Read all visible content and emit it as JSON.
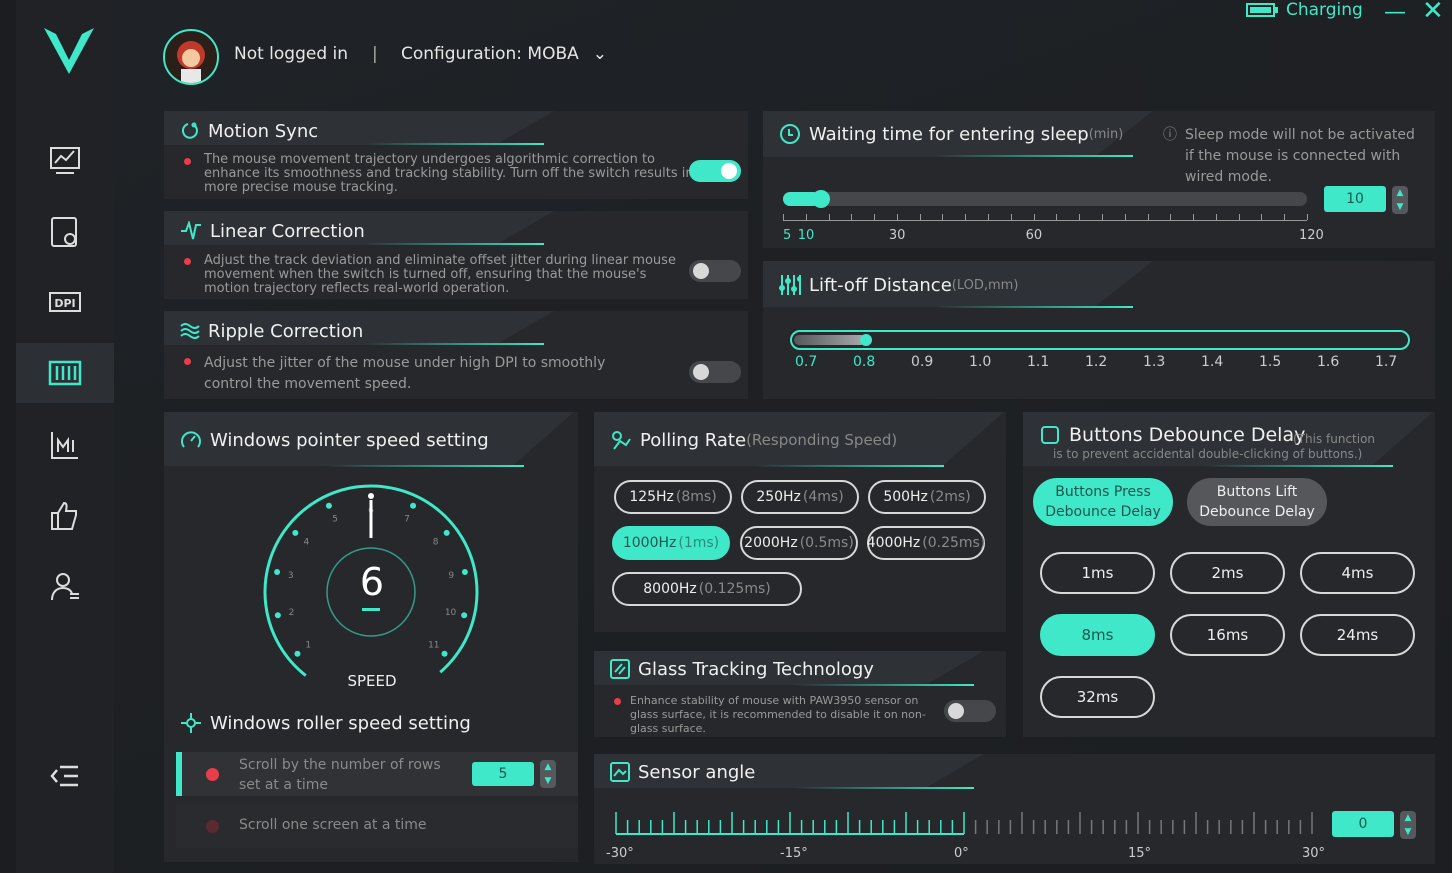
{
  "header": {
    "user": "Not logged in",
    "separator": "|",
    "config": "Configuration: MOBA",
    "charging": "Charging"
  },
  "sidebar": {
    "items": [
      "performance",
      "sensor-settings",
      "dpi",
      "advanced",
      "macro",
      "like",
      "account"
    ],
    "active": 3
  },
  "motion_sync": {
    "title": "Motion Sync",
    "desc": "The mouse movement trajectory undergoes algorithmic correction to enhance its smoothness and tracking stability. Turn off the switch results in more precise mouse tracking.",
    "on": true
  },
  "linear_correction": {
    "title": "Linear Correction",
    "desc": "Adjust the track deviation and eliminate offset jitter during linear mouse movement when the switch is turned off, ensuring that the mouse's motion trajectory reflects real-world operation.",
    "on": false
  },
  "ripple_correction": {
    "title": "Ripple Correction",
    "desc": "Adjust the jitter of the mouse under high DPI to smoothly control the movement speed.",
    "on": false
  },
  "sleep": {
    "title": "Waiting time for entering sleep",
    "unit": "(min)",
    "note": "Sleep mode will not be activated if the mouse is connected with wired mode.",
    "value": "10",
    "min": 5,
    "max": 120,
    "labels": [
      "5",
      "10",
      "30",
      "60",
      "120"
    ]
  },
  "lod": {
    "title": "Lift-off Distance",
    "unit": "(LOD,mm)",
    "value": 0.8,
    "labels": [
      "0.7",
      "0.8",
      "0.9",
      "1.0",
      "1.1",
      "1.2",
      "1.3",
      "1.4",
      "1.5",
      "1.6",
      "1.7"
    ]
  },
  "pointer": {
    "title": "Windows pointer speed setting",
    "value": "6",
    "label": "SPEED",
    "dial": [
      "1",
      "2",
      "3",
      "4",
      "5",
      "6",
      "7",
      "8",
      "9",
      "10",
      "11"
    ]
  },
  "roller": {
    "title": "Windows roller speed setting",
    "opt1": "Scroll by the number of rows set at a time",
    "opt1_value": "5",
    "opt2": "Scroll one screen at a time"
  },
  "polling": {
    "title": "Polling Rate",
    "subtitle": "(Responding Speed)",
    "options": [
      {
        "hz": "125Hz",
        "ms": "(8ms)"
      },
      {
        "hz": "250Hz",
        "ms": "(4ms)"
      },
      {
        "hz": "500Hz",
        "ms": "(2ms)"
      },
      {
        "hz": "1000Hz",
        "ms": "(1ms)"
      },
      {
        "hz": "2000Hz",
        "ms": "(0.5ms)"
      },
      {
        "hz": "4000Hz",
        "ms": "(0.25ms)"
      },
      {
        "hz": "8000Hz",
        "ms": "(0.125ms)"
      }
    ],
    "selected": 3
  },
  "debounce": {
    "title": "Buttons Debounce Delay",
    "subtitle": "(This function is to prevent accidental double-clicking of buttons.)",
    "press": "Buttons Press Debounce Delay",
    "lift": "Buttons Lift Debounce Delay",
    "options": [
      "1ms",
      "2ms",
      "4ms",
      "8ms",
      "16ms",
      "24ms",
      "32ms"
    ],
    "selected": 3
  },
  "glass": {
    "title": "Glass Tracking Technology",
    "desc": "Enhance stability of mouse with PAW3950 sensor on glass surface, it is recommended to disable it on non-glass surface.",
    "on": false
  },
  "sensor_angle": {
    "title": "Sensor angle",
    "value": "0",
    "labels": [
      "-30°",
      "-15°",
      "0°",
      "15°",
      "30°"
    ]
  },
  "colors": {
    "accent": "#3ee8c8",
    "alert": "#e83d4b"
  }
}
